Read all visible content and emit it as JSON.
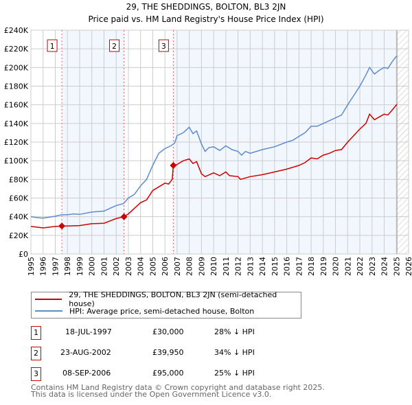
{
  "chart_data": {
    "type": "line",
    "title": "29, THE SHEDDINGS, BOLTON, BL3 2JN",
    "subtitle": "Price paid vs. HM Land Registry's House Price Index (HPI)",
    "xlim": [
      1995,
      2026
    ],
    "ylim": [
      0,
      240000
    ],
    "grid": true,
    "x_ticks": [
      "1995",
      "1996",
      "1997",
      "1998",
      "1999",
      "2000",
      "2001",
      "2002",
      "2003",
      "2004",
      "2005",
      "2006",
      "2007",
      "2008",
      "2009",
      "2010",
      "2011",
      "2012",
      "2013",
      "2014",
      "2015",
      "2016",
      "2017",
      "2018",
      "2019",
      "2020",
      "2021",
      "2022",
      "2023",
      "2024",
      "2025",
      "2026"
    ],
    "y_ticks": [
      "£0",
      "£20K",
      "£40K",
      "£60K",
      "£80K",
      "£100K",
      "£120K",
      "£140K",
      "£160K",
      "£180K",
      "£200K",
      "£220K",
      "£240K"
    ],
    "data_end_year": 2025.05,
    "series": [
      {
        "name": "29, THE SHEDDINGS, BOLTON, BL3 2JN (semi-detached house)",
        "color": "#cc0000",
        "x": [
          1995,
          1996,
          1997,
          1997.54,
          1998,
          1999,
          2000,
          2001,
          2001.5,
          2002,
          2002.64,
          2003,
          2003.5,
          2004,
          2004.5,
          2005,
          2005.5,
          2006,
          2006.3,
          2006.6,
          2006.69,
          2007,
          2007.5,
          2008,
          2008.3,
          2008.6,
          2009,
          2009.3,
          2010,
          2010.5,
          2011,
          2011.3,
          2012,
          2012.2,
          2013,
          2014,
          2015,
          2016,
          2017,
          2017.5,
          2018,
          2018.5,
          2019,
          2019.5,
          2020,
          2020.5,
          2021,
          2021.5,
          2022,
          2022.5,
          2022.8,
          2023.2,
          2023.6,
          2024,
          2024.3,
          2024.7,
          2025,
          2025.05
        ],
        "y": [
          29500,
          28000,
          29500,
          30000,
          30000,
          30500,
          32500,
          33000,
          35500,
          38000,
          39950,
          43000,
          49000,
          55000,
          58000,
          68000,
          72000,
          76000,
          75000,
          80000,
          95000,
          96000,
          100000,
          102000,
          97000,
          99000,
          86000,
          83000,
          87000,
          84000,
          88000,
          84000,
          83000,
          80000,
          83000,
          85000,
          88000,
          91000,
          95000,
          98000,
          103000,
          102000,
          106000,
          108000,
          111000,
          112000,
          120000,
          127000,
          134000,
          140000,
          150000,
          144000,
          147000,
          150000,
          149000,
          155000,
          160000,
          159500
        ]
      },
      {
        "name": "HPI: Average price, semi-detached house, Bolton",
        "color": "#5b8ccf",
        "x": [
          1995,
          1995.5,
          1996,
          1997,
          1997.5,
          1998,
          1998.5,
          1999,
          2000,
          2001,
          2001.5,
          2002,
          2002.6,
          2003,
          2003.5,
          2004,
          2004.5,
          2005,
          2005.5,
          2006,
          2006.5,
          2006.8,
          2007,
          2007.5,
          2008,
          2008.3,
          2008.6,
          2009,
          2009.3,
          2009.6,
          2010,
          2010.5,
          2011,
          2011.5,
          2012,
          2012.3,
          2012.6,
          2013,
          2013.5,
          2014,
          2015,
          2016,
          2016.5,
          2017,
          2017.5,
          2018,
          2018.5,
          2019,
          2019.5,
          2020,
          2020.5,
          2021,
          2021.5,
          2022,
          2022.5,
          2022.8,
          2023.2,
          2023.6,
          2024,
          2024.3,
          2024.7,
          2025,
          2025.05
        ],
        "y": [
          40000,
          39000,
          38500,
          40500,
          42000,
          42000,
          43000,
          42500,
          45000,
          46000,
          49000,
          52000,
          54000,
          60000,
          64000,
          73000,
          80000,
          95000,
          108000,
          113000,
          116000,
          119000,
          127000,
          130000,
          136000,
          129000,
          132000,
          118000,
          110000,
          114000,
          115000,
          111000,
          116000,
          112000,
          110000,
          106000,
          110000,
          108000,
          110000,
          112000,
          115000,
          120000,
          122000,
          126000,
          130000,
          137000,
          137000,
          140000,
          143000,
          146000,
          149000,
          160000,
          170000,
          180000,
          192000,
          200000,
          193000,
          197000,
          200000,
          199000,
          207000,
          212000,
          212000
        ]
      }
    ],
    "sales": [
      {
        "label": "1",
        "date": "18-JUL-1997",
        "x": 1997.54,
        "price_value": 30000,
        "price": "£30,000",
        "hpi": "28% ↓ HPI"
      },
      {
        "label": "2",
        "date": "23-AUG-2002",
        "x": 2002.64,
        "price_value": 39950,
        "price": "£39,950",
        "hpi": "34% ↓ HPI"
      },
      {
        "label": "3",
        "date": "08-SEP-2006",
        "x": 2006.69,
        "price_value": 95000,
        "price": "£95,000",
        "hpi": "25% ↓ HPI"
      }
    ]
  },
  "footer": {
    "line1": "Contains HM Land Registry data © Crown copyright and database right 2025.",
    "line2": "This data is licensed under the Open Government Licence v3.0."
  }
}
